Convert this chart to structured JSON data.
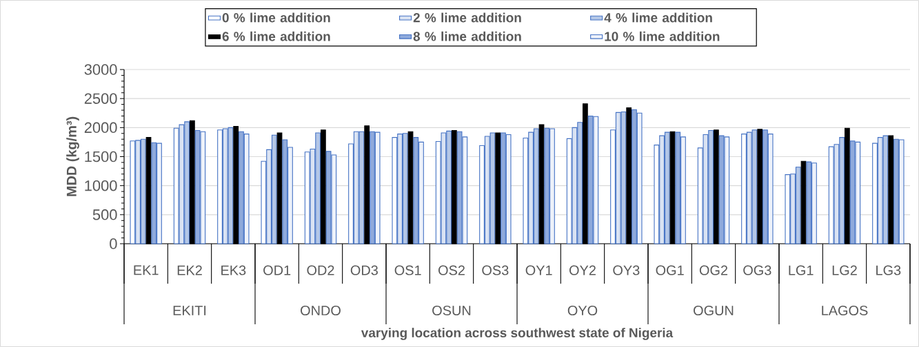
{
  "chart_data": {
    "type": "bar",
    "xlabel": "varying location across southwest state of Nigeria",
    "ylabel": "MDD (kg/m³)",
    "categories": [
      "EK1",
      "EK2",
      "EK3",
      "OD1",
      "OD2",
      "OD3",
      "OS1",
      "OS2",
      "OS3",
      "OY1",
      "OY2",
      "OY3",
      "OG1",
      "OG2",
      "OG3",
      "LG1",
      "LG2",
      "LG3"
    ],
    "series": [
      {
        "name": "0 % lime addition",
        "color": "#4472c4",
        "values": [
          1770,
          1990,
          1960,
          1420,
          1580,
          1720,
          1830,
          1760,
          1690,
          1820,
          1810,
          1960,
          1700,
          1650,
          1890,
          1190,
          1670,
          1730
        ]
      },
      {
        "name": "2 % lime addition",
        "color": "#4472c4",
        "values": [
          1780,
          2050,
          1980,
          1620,
          1630,
          1930,
          1890,
          1910,
          1850,
          1920,
          2000,
          2260,
          1860,
          1880,
          1920,
          1200,
          1710,
          1830
        ]
      },
      {
        "name": "4 %  lime addition",
        "color": "#4472c4",
        "values": [
          1800,
          2100,
          2000,
          1870,
          1910,
          1930,
          1900,
          1940,
          1910,
          1980,
          2090,
          2270,
          1920,
          1950,
          1960,
          1320,
          1830,
          1860
        ]
      },
      {
        "name": "6 %  lime addition",
        "color": "#000000",
        "values": [
          1830,
          2120,
          2020,
          1910,
          1960,
          2030,
          1930,
          1950,
          1910,
          2050,
          2410,
          2340,
          1930,
          1960,
          1970,
          1420,
          1990,
          1860
        ]
      },
      {
        "name": "8 %  lime addition",
        "color": "#4472c4",
        "values": [
          1740,
          1950,
          1930,
          1790,
          1590,
          1930,
          1830,
          1930,
          1910,
          1990,
          2200,
          2310,
          1920,
          1860,
          1960,
          1410,
          1770,
          1800
        ]
      },
      {
        "name": "10 %  lime addition",
        "color": "#4472c4",
        "values": [
          1730,
          1930,
          1890,
          1660,
          1530,
          1920,
          1750,
          1840,
          1880,
          1980,
          2190,
          2250,
          1840,
          1840,
          1890,
          1390,
          1750,
          1790
        ]
      }
    ],
    "annotations": [
      "EKITI",
      "ONDO",
      "OSUN",
      "OYO",
      "OGUN",
      "LAGOS"
    ],
    "ylim": [
      0,
      3000
    ],
    "yticks": [
      0,
      500,
      1000,
      1500,
      2000,
      2500,
      3000
    ],
    "grid": "y",
    "legend": "top"
  }
}
